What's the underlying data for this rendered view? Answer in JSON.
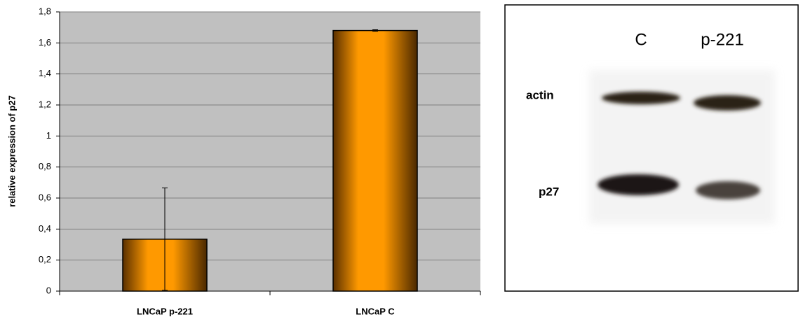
{
  "chart_data": {
    "type": "bar",
    "categories": [
      "LNCaP p-221",
      "LNCaP C"
    ],
    "values": [
      0.335,
      1.68
    ],
    "errors": [
      0.33,
      0.005
    ],
    "color": "#ff9900",
    "y_label": "relative expression of p27",
    "ylim": [
      0,
      1.8
    ],
    "yticks": [
      0,
      {
        "value": 0.2,
        "label": "0,2"
      },
      {
        "value": 0.4,
        "label": "0,4"
      },
      {
        "value": 0.6,
        "label": "0,6"
      },
      {
        "value": 0.8,
        "label": "0,8"
      },
      1,
      {
        "value": 1.2,
        "label": "1,2"
      },
      {
        "value": 1.4,
        "label": "1,4"
      },
      {
        "value": 1.6,
        "label": "1,6"
      },
      {
        "value": 1.8,
        "label": "1,8"
      }
    ],
    "grid": true
  },
  "blot": {
    "lanes": [
      "C",
      "p-221"
    ],
    "rows": [
      "actin",
      "p27"
    ]
  }
}
